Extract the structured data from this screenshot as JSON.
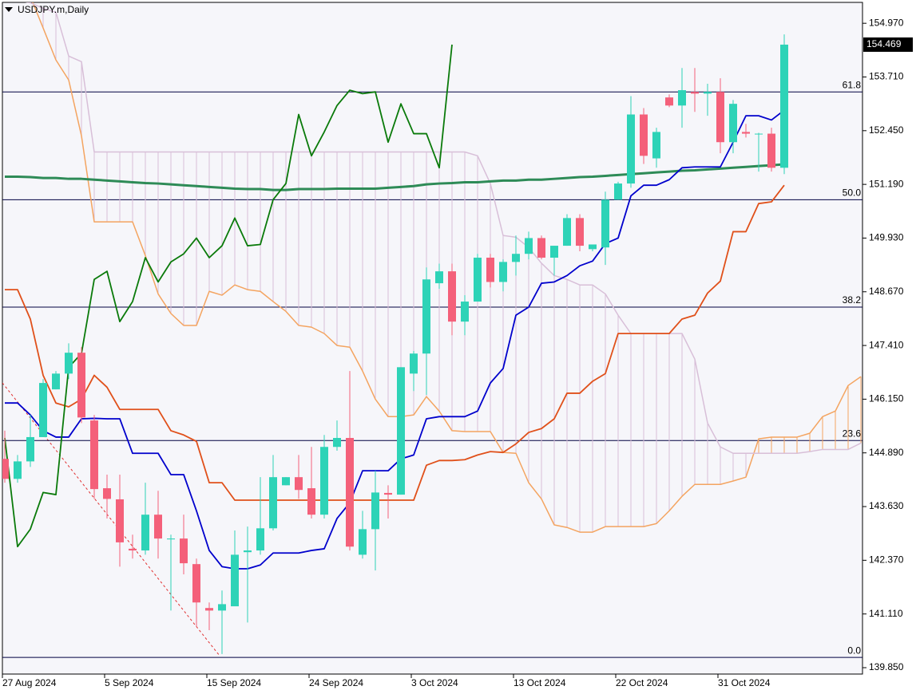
{
  "chart_data": {
    "type": "candlestick",
    "title": "USDJPY.m,Daily",
    "categories": [
      "27 Aug 2024",
      null,
      null,
      null,
      null,
      null,
      null,
      null,
      "5 Sep 2024",
      null,
      null,
      null,
      null,
      null,
      null,
      null,
      "15 Sep 2024",
      null,
      null,
      null,
      null,
      null,
      null,
      null,
      "24 Sep 2024",
      null,
      null,
      null,
      null,
      null,
      null,
      null,
      "3 Oct 2024",
      null,
      null,
      null,
      null,
      null,
      null,
      null,
      "13 Oct 2024",
      null,
      null,
      null,
      null,
      null,
      null,
      null,
      "22 Oct 2024",
      null,
      null,
      null,
      null,
      null,
      null,
      null,
      "31 Oct 2024",
      null,
      null,
      null,
      null,
      null,
      null,
      null,
      null,
      null,
      null,
      null
    ],
    "open": [
      144.75,
      144.28,
      144.69,
      145.26,
      146.38,
      146.75,
      147.24,
      145.65,
      144.06,
      143.8,
      142.64,
      142.6,
      143.44,
      142.86,
      142.88,
      142.28,
      141.25,
      141.19,
      141.29,
      142.56,
      142.6,
      143.12,
      144.13,
      144.32,
      144.06,
      143.44,
      145.03,
      145.24,
      142.5,
      143.1,
      143.95,
      143.91,
      146.75,
      147.22,
      148.87,
      149.15,
      147.97,
      148.44,
      149.47,
      148.9,
      149.37,
      149.56,
      149.93,
      149.47,
      149.75,
      150.4,
      149.67,
      149.71,
      150.83,
      151.21,
      152.83,
      151.8,
      153.23,
      153.04,
      153.36,
      153.32,
      153.36,
      152.18,
      152.42,
      152.38,
      152.38,
      151.58,
      null,
      null,
      null,
      null,
      null,
      null
    ],
    "high": [
      145.41,
      144.84,
      145.78,
      146.62,
      146.81,
      147.46,
      147.37,
      145.78,
      144.38,
      144.38,
      142.97,
      144.19,
      144.0,
      142.97,
      143.44,
      142.41,
      141.38,
      141.66,
      143.07,
      143.16,
      144.32,
      144.84,
      144.32,
      144.84,
      145.03,
      145.31,
      145.65,
      146.81,
      143.53,
      144.47,
      144.13,
      146.9,
      147.28,
      149.24,
      149.33,
      149.33,
      148.59,
      149.56,
      149.56,
      149.43,
      149.99,
      150.08,
      149.99,
      149.75,
      150.49,
      150.49,
      149.78,
      151.02,
      151.25,
      153.26,
      152.98,
      152.52,
      153.3,
      153.92,
      153.92,
      153.55,
      153.68,
      153.17,
      152.61,
      152.4,
      152.52,
      154.71,
      null,
      null,
      null,
      null,
      null,
      null
    ],
    "low": [
      144.19,
      144.19,
      144.56,
      145.26,
      146.38,
      146.62,
      145.59,
      143.81,
      143.35,
      142.22,
      142.41,
      142.5,
      142.41,
      141.19,
      142.04,
      140.82,
      140.73,
      140.17,
      141.29,
      140.91,
      142.5,
      143.07,
      144.13,
      143.81,
      143.35,
      143.35,
      144.94,
      142.6,
      142.41,
      142.13,
      143.35,
      143.91,
      146.34,
      146.25,
      148.74,
      147.65,
      147.65,
      148.44,
      148.77,
      148.68,
      149.05,
      149.43,
      149.43,
      149.05,
      149.75,
      149.62,
      149.62,
      149.3,
      150.83,
      151.11,
      151.67,
      151.58,
      153.0,
      152.52,
      152.89,
      152.8,
      151.92,
      151.92,
      152.29,
      151.49,
      151.49,
      151.43,
      null,
      null,
      null,
      null,
      null,
      null
    ],
    "close": [
      144.28,
      144.69,
      145.26,
      146.53,
      146.75,
      147.24,
      145.72,
      144.04,
      143.81,
      142.79,
      142.6,
      143.44,
      142.88,
      142.88,
      142.3,
      141.38,
      141.19,
      141.34,
      142.5,
      142.6,
      143.12,
      144.32,
      144.32,
      144.02,
      143.44,
      145.03,
      145.24,
      142.69,
      143.1,
      143.96,
      143.91,
      146.9,
      147.22,
      148.96,
      149.15,
      147.97,
      148.44,
      149.47,
      148.9,
      149.37,
      149.56,
      149.93,
      149.47,
      149.75,
      150.4,
      149.75,
      149.78,
      150.83,
      151.21,
      152.83,
      151.86,
      152.42,
      153.04,
      153.4,
      153.32,
      153.36,
      152.18,
      153.08,
      152.38,
      152.38,
      151.58,
      154.469,
      null,
      null,
      null,
      null,
      null,
      null
    ],
    "up_color": "#2ed3b7",
    "down_color": "#f4607a",
    "span_a": {
      "color": "#f4a460",
      "values": [
        156.63,
        156.07,
        155.6,
        154.86,
        154.11,
        153.64,
        152.33,
        150.31,
        150.31,
        150.31,
        150.31,
        149.52,
        148.62,
        148.16,
        147.88,
        147.88,
        148.68,
        148.59,
        148.83,
        148.72,
        148.68,
        148.44,
        148.21,
        147.88,
        147.84,
        147.69,
        147.41,
        147.37,
        146.81,
        146.15,
        145.74,
        145.74,
        145.78,
        146.21,
        145.87,
        145.41,
        145.39,
        145.39,
        145.39,
        144.9,
        144.88,
        144.19,
        143.81,
        143.2,
        143.14,
        143.03,
        143.03,
        143.16,
        143.16,
        143.16,
        143.16,
        143.23,
        143.53,
        143.87,
        144.15,
        144.15,
        144.15,
        144.23,
        144.32,
        145.22,
        145.26,
        145.26,
        145.26,
        145.35,
        145.74,
        145.87,
        146.47,
        146.68
      ]
    },
    "span_b": {
      "color": "#d8bfd8",
      "values": [
        155.51,
        155.51,
        155.45,
        155.32,
        155.23,
        154.2,
        154.07,
        151.95,
        151.95,
        151.95,
        151.95,
        151.95,
        151.95,
        151.95,
        151.95,
        151.95,
        151.95,
        151.95,
        151.95,
        151.95,
        151.95,
        151.95,
        151.95,
        151.95,
        151.95,
        151.95,
        151.95,
        151.95,
        151.95,
        151.95,
        151.95,
        151.95,
        151.95,
        151.95,
        151.95,
        151.95,
        151.95,
        151.86,
        151.21,
        149.99,
        149.95,
        149.71,
        149.34,
        149.05,
        148.96,
        148.83,
        148.83,
        148.62,
        148.12,
        147.69,
        147.69,
        147.69,
        147.69,
        147.69,
        147.09,
        145.59,
        145.03,
        144.88,
        144.88,
        144.88,
        144.88,
        144.88,
        144.88,
        144.92,
        144.97,
        144.97,
        144.97,
        145.12
      ]
    },
    "ma": {
      "color": "#2e8b57",
      "values": [
        151.37,
        151.37,
        151.36,
        151.34,
        151.34,
        151.32,
        151.32,
        151.3,
        151.28,
        151.26,
        151.24,
        151.22,
        151.21,
        151.19,
        151.17,
        151.15,
        151.13,
        151.11,
        151.09,
        151.08,
        151.08,
        151.06,
        151.06,
        151.08,
        151.08,
        151.08,
        151.09,
        151.09,
        151.09,
        151.09,
        151.11,
        151.13,
        151.15,
        151.19,
        151.21,
        151.22,
        151.24,
        151.24,
        151.26,
        151.28,
        151.28,
        151.3,
        151.3,
        151.32,
        151.34,
        151.36,
        151.37,
        151.39,
        151.41,
        151.43,
        151.45,
        151.47,
        151.49,
        151.51,
        151.52,
        151.54,
        151.56,
        151.58,
        151.6,
        151.62,
        151.64,
        151.66,
        null,
        null,
        null,
        null,
        null,
        null
      ]
    },
    "kijun": {
      "color": "#e0501a",
      "values": [
        148.72,
        148.72,
        148.03,
        146.71,
        146.06,
        145.97,
        146.15,
        146.71,
        146.43,
        145.91,
        145.91,
        145.91,
        145.91,
        145.41,
        145.31,
        145.16,
        144.19,
        144.19,
        143.78,
        143.78,
        143.78,
        143.78,
        143.78,
        143.78,
        143.78,
        143.78,
        143.78,
        143.78,
        143.78,
        143.78,
        143.78,
        143.78,
        143.78,
        144.6,
        144.71,
        144.71,
        144.73,
        144.84,
        144.92,
        144.9,
        145.1,
        145.37,
        145.46,
        145.69,
        146.29,
        146.29,
        146.57,
        146.75,
        147.69,
        147.69,
        147.69,
        147.69,
        147.69,
        148.03,
        148.12,
        148.64,
        148.92,
        150.08,
        150.08,
        150.74,
        150.78,
        151.17,
        null,
        null,
        null,
        null,
        null,
        null
      ]
    },
    "tenkan": {
      "color": "#0000cc",
      "values": [
        146.06,
        146.06,
        145.78,
        145.41,
        145.26,
        145.26,
        145.69,
        145.7,
        145.69,
        145.69,
        144.88,
        144.88,
        144.88,
        144.38,
        144.38,
        143.53,
        142.6,
        142.22,
        142.17,
        142.17,
        142.26,
        142.54,
        142.54,
        142.54,
        142.6,
        142.64,
        143.35,
        143.72,
        144.47,
        144.47,
        144.47,
        144.75,
        144.84,
        145.69,
        145.74,
        145.74,
        145.74,
        145.87,
        146.53,
        146.87,
        148.12,
        148.31,
        148.87,
        148.9,
        149.05,
        149.28,
        149.39,
        149.8,
        149.93,
        150.92,
        151.17,
        151.17,
        151.3,
        151.58,
        151.6,
        151.6,
        151.6,
        152.18,
        152.8,
        152.8,
        152.7,
        152.93,
        null,
        null,
        null,
        null,
        null,
        null
      ]
    },
    "chikou": {
      "color": "#0a7a0a",
      "values": [
        145.24,
        142.69,
        143.1,
        143.96,
        143.91,
        146.9,
        147.22,
        148.96,
        149.15,
        147.97,
        148.44,
        149.47,
        148.9,
        149.37,
        149.56,
        149.93,
        149.47,
        149.75,
        150.4,
        149.75,
        149.78,
        150.83,
        151.21,
        152.83,
        151.86,
        152.42,
        153.04,
        153.4,
        153.32,
        153.36,
        152.18,
        153.08,
        152.38,
        152.38,
        151.58,
        154.469,
        null,
        null,
        null,
        null,
        null,
        null,
        null,
        null,
        null,
        null,
        null,
        null,
        null,
        null,
        null,
        null,
        null,
        null,
        null,
        null,
        null,
        null,
        null,
        null,
        null,
        null,
        null,
        null,
        null,
        null,
        null,
        null
      ]
    },
    "fib_levels": [
      {
        "label": "61.8",
        "price": 153.36
      },
      {
        "label": "50.0",
        "price": 150.83
      },
      {
        "label": "38.2",
        "price": 148.31
      },
      {
        "label": "23.6",
        "price": 145.18
      },
      {
        "label": "0.0",
        "price": 140.09
      }
    ],
    "fib_color": "#000040",
    "current_price": {
      "value": 154.469,
      "label": "154.469"
    },
    "ylim": [
      139.7,
      155.46
    ],
    "yticks": [
      {
        "value": 154.97,
        "label": "154.970"
      },
      {
        "value": 153.71,
        "label": "153.710"
      },
      {
        "value": 152.45,
        "label": "152.450"
      },
      {
        "value": 151.19,
        "label": "151.190"
      },
      {
        "value": 149.93,
        "label": "149.930"
      },
      {
        "value": 148.67,
        "label": "148.670"
      },
      {
        "value": 147.41,
        "label": "147.410"
      },
      {
        "value": 146.15,
        "label": "146.150"
      },
      {
        "value": 144.89,
        "label": "144.890"
      },
      {
        "value": 143.63,
        "label": "143.630"
      },
      {
        "value": 142.37,
        "label": "142.370"
      },
      {
        "value": 141.11,
        "label": "141.110"
      },
      {
        "value": 139.85,
        "label": "139.850"
      }
    ]
  }
}
